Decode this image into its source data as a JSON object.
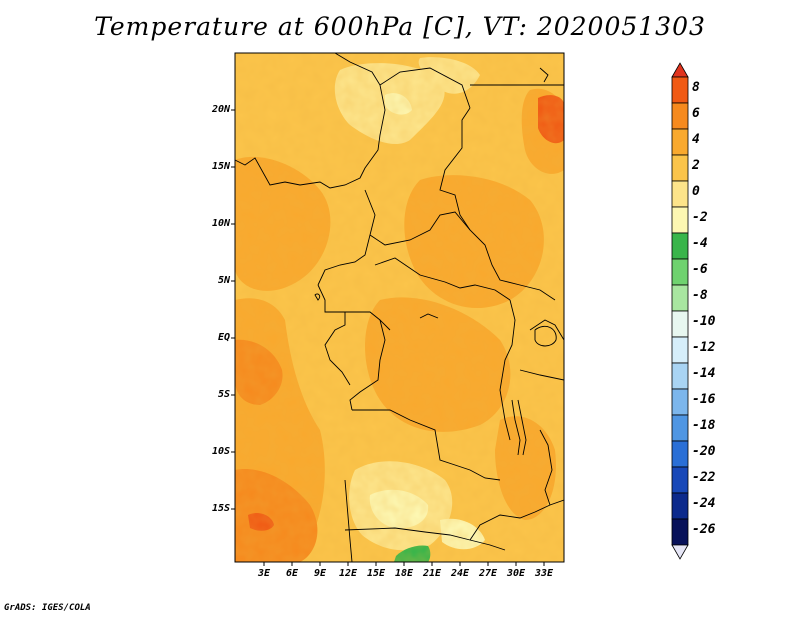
{
  "title": "Temperature at 600hPa [C], VT: 2020051303",
  "credit": "GrADS: IGES/COLA",
  "map": {
    "lat_labels": [
      "20N",
      "15N",
      "10N",
      "5N",
      "EQ",
      "5S",
      "10S",
      "15S"
    ],
    "lon_labels": [
      "3E",
      "6E",
      "9E",
      "12E",
      "15E",
      "18E",
      "21E",
      "24E",
      "27E",
      "30E",
      "33E"
    ]
  },
  "colorbar": {
    "levels": [
      "8",
      "6",
      "4",
      "2",
      "0",
      "-2",
      "-4",
      "-6",
      "-8",
      "-10",
      "-12",
      "-14",
      "-16",
      "-18",
      "-20",
      "-22",
      "-24",
      "-26"
    ],
    "colors": [
      "#e0341e",
      "#f05a14",
      "#f68a1e",
      "#f9a92e",
      "#fbc44a",
      "#fde48a",
      "#fdf7b2",
      "#39b54a",
      "#6fd26f",
      "#a8e6a0",
      "#e8f7f0",
      "#d6eefa",
      "#a9d4f3",
      "#7cb6ec",
      "#4f96e3",
      "#2a6fd6",
      "#1848b8",
      "#0c2a8c",
      "#08125a",
      "#e6e6f6"
    ]
  }
}
